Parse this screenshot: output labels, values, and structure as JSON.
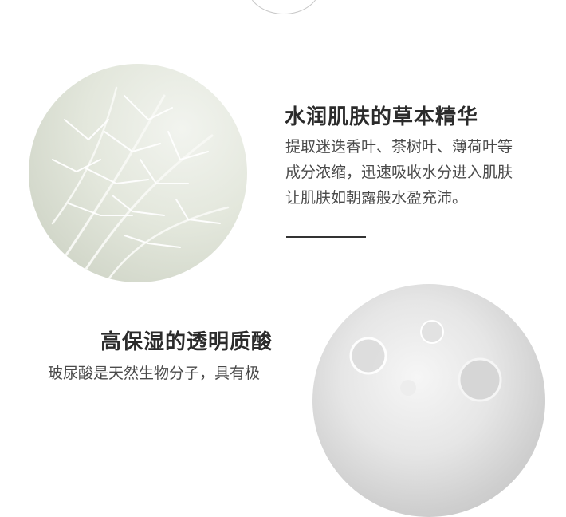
{
  "section_1": {
    "title": "水润肌肤的草本精华",
    "lines": [
      "提取迷迭香叶、茶树叶、薄荷叶等",
      "成分浓缩，迅速吸收水分进入肌肤",
      "让肌肤如朝露般水盈充沛。"
    ],
    "image": "rosemary-photo"
  },
  "section_2": {
    "title": "高保湿的透明质酸",
    "lines": [
      "玻尿酸是天然生物分子，具有极"
    ],
    "image": "serum-droplet-photo"
  },
  "colors": {
    "text_primary": "#2b2b2b",
    "text_body": "#4a4a4a",
    "background": "#ffffff"
  }
}
